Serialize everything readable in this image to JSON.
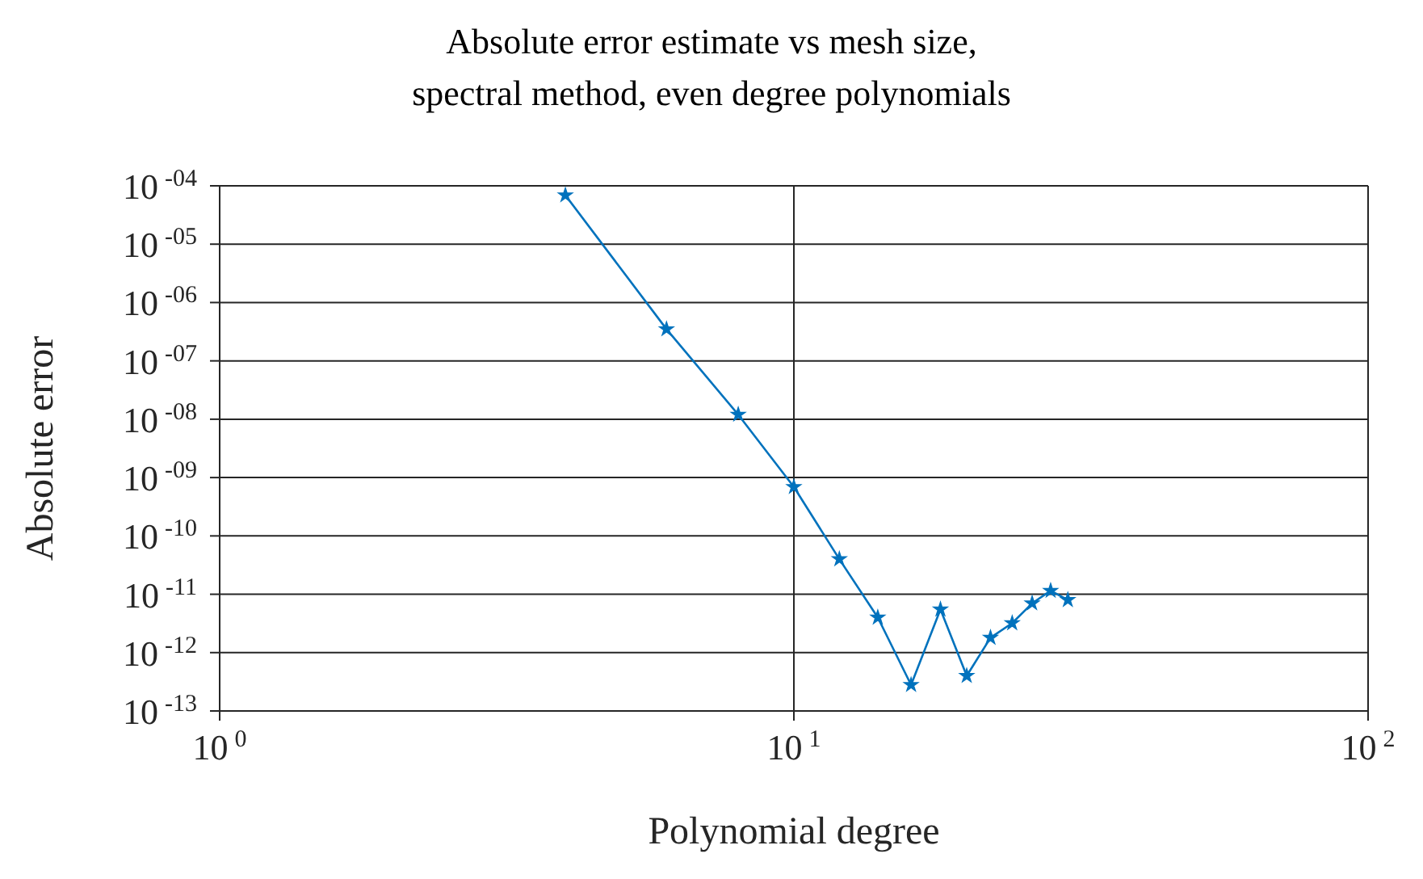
{
  "chart_data": {
    "type": "line",
    "title": "Absolute error estimate vs mesh size, spectral method, even degree polynomials",
    "xlabel": "Polynomial degree",
    "ylabel": "Absolute error",
    "log": "xy",
    "grid": true,
    "marker": "star",
    "line_style": "solid",
    "legend": false,
    "x": [
      4,
      6,
      8,
      10,
      12,
      14,
      16,
      18,
      20,
      22,
      24,
      26,
      28,
      30
    ],
    "series": [
      {
        "color": "#0072bd",
        "values": [
          6.9e-05,
          3.5e-07,
          1.2e-08,
          6.9e-10,
          4e-11,
          4e-12,
          2.8e-13,
          5.5e-12,
          4e-13,
          1.8e-12,
          3.2e-12,
          7e-12,
          1.15e-11,
          8e-12
        ]
      }
    ],
    "xlim": [
      1,
      100
    ],
    "xticks": [
      {
        "value": 1,
        "label": "10$^{0}$"
      },
      {
        "value": 10,
        "label": "10$^{1}$"
      },
      {
        "value": 100,
        "label": "10$^{2}$"
      }
    ],
    "ylim": [
      1e-13,
      0.0001
    ],
    "yticks": [
      {
        "value": 1e-13,
        "label": "10$^{-13}$"
      },
      {
        "value": 1e-12,
        "label": "10$^{-12}$"
      },
      {
        "value": 1e-11,
        "label": "10$^{-11}$"
      },
      {
        "value": 1e-10,
        "label": "10$^{-10}$"
      },
      {
        "value": 1e-09,
        "label": "10$^{-09}$"
      },
      {
        "value": 1e-08,
        "label": "10$^{-08}$"
      },
      {
        "value": 1e-07,
        "label": "10$^{-07}$"
      },
      {
        "value": 1e-06,
        "label": "10$^{-06}$"
      },
      {
        "value": 1e-05,
        "label": "10$^{-05}$"
      },
      {
        "value": 0.0001,
        "label": "10$^{-04}$"
      }
    ]
  }
}
